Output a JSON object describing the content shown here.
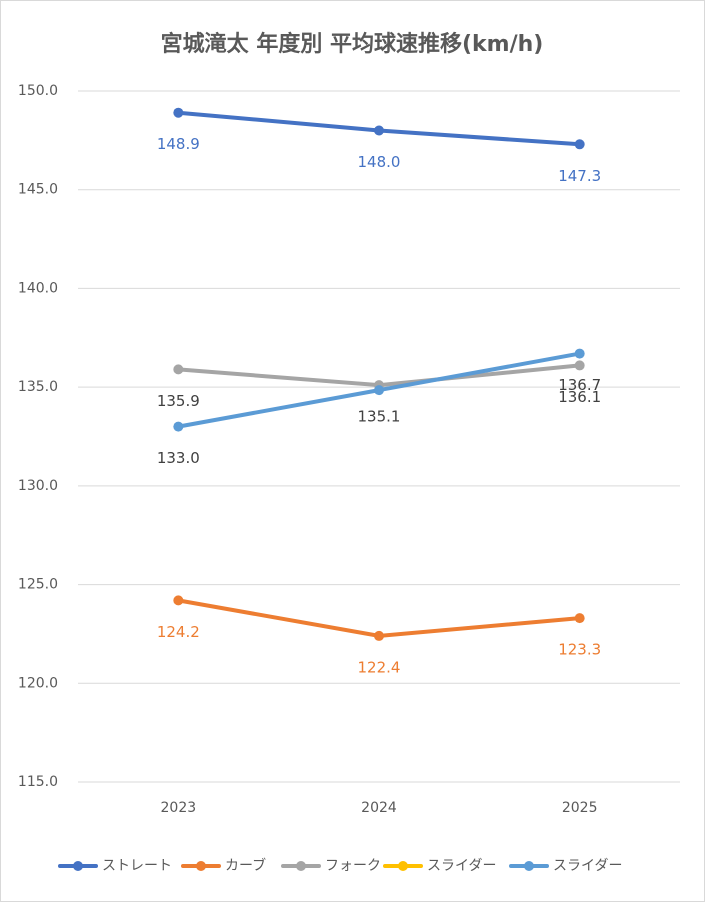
{
  "chart_data": {
    "type": "line",
    "title": "宮城滝太 年度別 平均球速推移(km/h)",
    "categories": [
      "2023",
      "2024",
      "2025"
    ],
    "ylim": [
      115,
      150
    ],
    "yticks": [
      {
        "value": 115,
        "label": "115.0"
      },
      {
        "value": 120,
        "label": "120.0"
      },
      {
        "value": 125,
        "label": "125.0"
      },
      {
        "value": 130,
        "label": "130.0"
      },
      {
        "value": 135,
        "label": "135.0"
      },
      {
        "value": 140,
        "label": "140.0"
      },
      {
        "value": 145,
        "label": "145.0"
      },
      {
        "value": 150,
        "label": "150.0"
      }
    ],
    "grid": true,
    "legend": "bottom",
    "series": [
      {
        "name": "ストレート",
        "color": "#4472c4",
        "values": [
          148.9,
          148.0,
          147.3
        ],
        "value_labels": [
          "148.9",
          "148.0",
          "147.3"
        ]
      },
      {
        "name": "カーブ",
        "color": "#ed7d31",
        "values": [
          124.2,
          122.4,
          123.3
        ],
        "value_labels": [
          "124.2",
          "122.4",
          "123.3"
        ]
      },
      {
        "name": "フォーク",
        "color": "#a5a5a5",
        "values": [
          135.9,
          135.1,
          136.1
        ],
        "value_labels": [
          "135.9",
          "135.1",
          "136.1"
        ]
      },
      {
        "name": "スライダー",
        "color": "#ffc000",
        "values": [
          null,
          null,
          null
        ],
        "value_labels": [
          null,
          null,
          null
        ]
      },
      {
        "name": "スライダー",
        "color": "#5b9bd5",
        "values": [
          133.0,
          134.85,
          136.7
        ],
        "value_labels": [
          "133.0",
          null,
          "136.7"
        ]
      }
    ]
  }
}
